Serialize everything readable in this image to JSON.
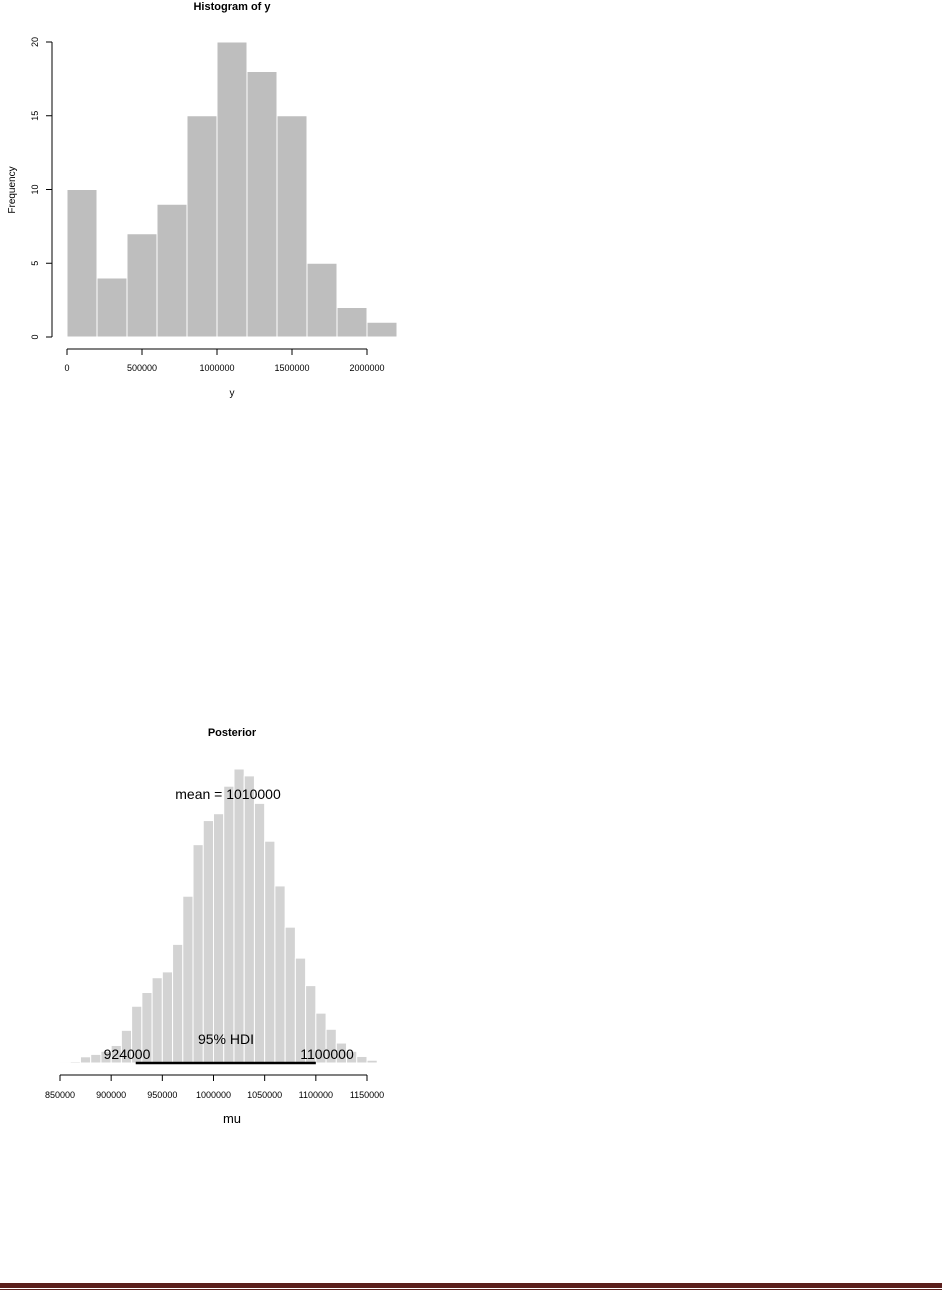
{
  "chart_data": [
    {
      "type": "bar",
      "title": "Histogram of y",
      "xlabel": "y",
      "ylabel": "Frequency",
      "bin_edges": [
        0,
        200000,
        400000,
        600000,
        800000,
        1000000,
        1200000,
        1400000,
        1600000,
        1800000,
        2000000,
        2200000
      ],
      "values": [
        10,
        4,
        7,
        9,
        15,
        20,
        18,
        15,
        5,
        2,
        1
      ],
      "xticks": [
        0,
        500000,
        1000000,
        1500000,
        2000000
      ],
      "xtick_labels": [
        "0",
        "500000",
        "1000000",
        "1500000",
        "2000000"
      ],
      "yticks": [
        0,
        5,
        10,
        15,
        20
      ],
      "ytick_labels": [
        "0",
        "5",
        "10",
        "15",
        "20"
      ],
      "xlim": [
        0,
        2200000
      ],
      "ylim": [
        0,
        20
      ],
      "bar_color": "#bebebe"
    },
    {
      "type": "bar",
      "title": "Posterior",
      "xlabel": "mu",
      "bin_start": 850000,
      "bin_width": 10000,
      "values": [
        0.3,
        0.4,
        1.8,
        2.5,
        3.4,
        5.1,
        9.5,
        16.5,
        20.5,
        24.8,
        26.5,
        34.5,
        48.5,
        63.5,
        70.5,
        72.5,
        80.5,
        85.5,
        83.5,
        75.5,
        64.5,
        51.5,
        39.5,
        30.5,
        22.5,
        14.5,
        9.8,
        5.8,
        3.4,
        1.9,
        0.8
      ],
      "xticks": [
        850000,
        900000,
        950000,
        1000000,
        1050000,
        1100000,
        1150000
      ],
      "xtick_labels": [
        "850000",
        "900000",
        "950000",
        "1000000",
        "1050000",
        "1100000",
        "1150000"
      ],
      "xlim": [
        850000,
        1150000
      ],
      "mean_label": "mean = 1010000",
      "hdi_label": "95% HDI",
      "hdi_low": 924000,
      "hdi_high": 1100000,
      "hdi_low_label": "924000",
      "hdi_high_label": "1100000",
      "bar_color": "#d3d3d3"
    }
  ],
  "footer": {
    "bar_color": "#5a1f1c"
  }
}
